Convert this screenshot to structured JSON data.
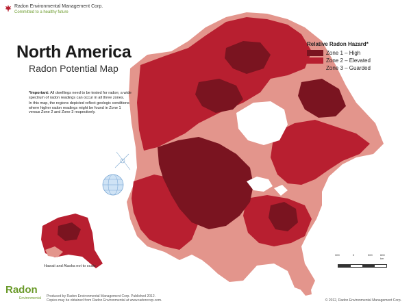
{
  "brand": {
    "company": "Radon Environmental Management Corp.",
    "tagline": "Committed to a healthy future"
  },
  "title": "North America",
  "subtitle": "Radon Potential Map",
  "note": {
    "bold": "*Important:",
    "line1": " All dwellings need to be tested for radon; a wide spectrum of radon readings can occur in all three zones.",
    "line2": "In this map, the regions depicted reflect geologic conditions where higher radon readings might be found in Zone 1 versus Zone 2 and Zone 3 respectively."
  },
  "legend": {
    "title": "Relative Radon Hazard*",
    "items": [
      {
        "label": "Zone 1 – High",
        "color": "#7a1420"
      },
      {
        "label": "Zone 2 – Elevated",
        "color": "#b81f30"
      },
      {
        "label": "Zone 3 – Guarded",
        "color": "#e3958c"
      }
    ]
  },
  "hawaii_note": "Hawaii and Alaska not to scale",
  "scale": {
    "labels": [
      "300",
      "0",
      "300",
      "600 km"
    ]
  },
  "footer": {
    "logo": "Radon",
    "logo_sub": "Environmental",
    "credit1": "Produced by Radon Environmental Management Corp.  Published 2012.",
    "credit2": "Copies may be obtained from Radon Environmental at www.radoncorp.com.",
    "copyright": "© 2012,  Radon Environmental Management Corp."
  },
  "colors": {
    "zone1": "#7a1420",
    "zone2": "#b81f30",
    "zone3": "#e3958c",
    "water": "#ffffff"
  }
}
